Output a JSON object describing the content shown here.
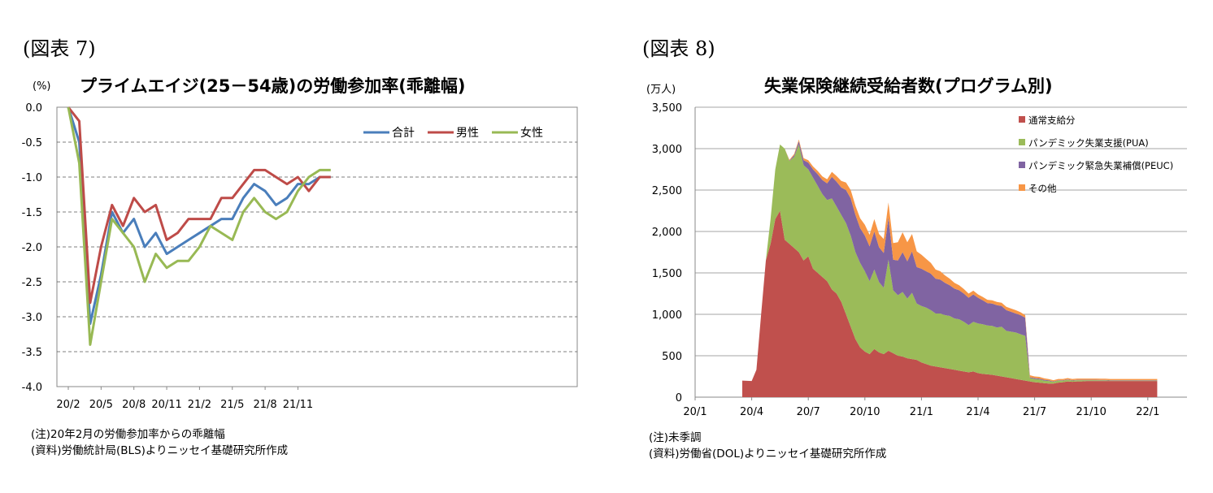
{
  "fig7": {
    "label": "(図表 7)",
    "title": "プライムエイジ(25－54歳)の労働参加率(乖離幅)",
    "unit": "(%)",
    "note1": "(注)20年2月の労働参加率からの乖離幅",
    "note2": "(資料)労働統計局(BLS)よりニッセイ基礎研究所作成",
    "chart_data": {
      "type": "line",
      "title": "プライムエイジ(25－54歳)の労働参加率(乖離幅)",
      "ylabel": "(%)",
      "ylim": [
        -4.0,
        0.0
      ],
      "yticks": [
        "0.0",
        "-0.5",
        "-1.0",
        "-1.5",
        "-2.0",
        "-2.5",
        "-3.0",
        "-3.5",
        "-4.0"
      ],
      "xtick_labels": [
        "20/2",
        "20/5",
        "20/8",
        "20/11",
        "21/2",
        "21/5",
        "21/8",
        "21/11"
      ],
      "categories": [
        "20/2",
        "20/3",
        "20/4",
        "20/5",
        "20/6",
        "20/7",
        "20/8",
        "20/9",
        "20/10",
        "20/11",
        "20/12",
        "21/1",
        "21/2",
        "21/3",
        "21/4",
        "21/5",
        "21/6",
        "21/7",
        "21/8",
        "21/9",
        "21/10",
        "21/11",
        "21/12",
        "22/1",
        "22/2"
      ],
      "legend_position": "top-right",
      "grid": true,
      "series": [
        {
          "name": "合計",
          "color": "#4a7ebb",
          "values": [
            0.0,
            -0.5,
            -3.1,
            -2.4,
            -1.5,
            -1.8,
            -1.6,
            -2.0,
            -1.8,
            -2.1,
            -2.0,
            -1.9,
            -1.8,
            -1.7,
            -1.6,
            -1.6,
            -1.3,
            -1.1,
            -1.2,
            -1.4,
            -1.3,
            -1.1,
            -1.1,
            -1.0,
            -1.0
          ]
        },
        {
          "name": "男性",
          "color": "#be4b48",
          "values": [
            0.0,
            -0.2,
            -2.8,
            -2.0,
            -1.4,
            -1.7,
            -1.3,
            -1.5,
            -1.4,
            -1.9,
            -1.8,
            -1.6,
            -1.6,
            -1.6,
            -1.3,
            -1.3,
            -1.1,
            -0.9,
            -0.9,
            -1.0,
            -1.1,
            -1.0,
            -1.2,
            -1.0,
            -1.0
          ]
        },
        {
          "name": "女性",
          "color": "#98b954",
          "values": [
            0.0,
            -0.8,
            -3.4,
            -2.5,
            -1.6,
            -1.8,
            -2.0,
            -2.5,
            -2.1,
            -2.3,
            -2.2,
            -2.2,
            -2.0,
            -1.7,
            -1.8,
            -1.9,
            -1.5,
            -1.3,
            -1.5,
            -1.6,
            -1.5,
            -1.2,
            -1.0,
            -0.9,
            -0.9
          ]
        }
      ]
    }
  },
  "fig8": {
    "label": "(図表 8)",
    "title": "失業保険継続受給者数(プログラム別)",
    "unit": "(万人)",
    "note1": "(注)未季調",
    "note2": "(資料)労働省(DOL)よりニッセイ基礎研究所作成",
    "chart_data": {
      "type": "area",
      "stacked": true,
      "title": "失業保険継続受給者数(プログラム別)",
      "ylabel": "(万人)",
      "ylim": [
        0,
        3500
      ],
      "yticks": [
        "0",
        "500",
        "1,000",
        "1,500",
        "2,000",
        "2,500",
        "3,000",
        "3,500"
      ],
      "xtick_labels": [
        "20/1",
        "20/4",
        "20/7",
        "20/10",
        "21/1",
        "21/4",
        "21/7",
        "21/10",
        "22/1"
      ],
      "legend_position": "top-right",
      "grid": true,
      "x": [
        2.5,
        3.0,
        3.25,
        3.5,
        3.75,
        4.0,
        4.25,
        4.5,
        4.75,
        5.0,
        5.25,
        5.5,
        5.75,
        6.0,
        6.25,
        6.5,
        6.75,
        7.0,
        7.25,
        7.5,
        7.75,
        8.0,
        8.25,
        8.5,
        8.75,
        9.0,
        9.25,
        9.5,
        9.75,
        10.0,
        10.25,
        10.5,
        10.75,
        11.0,
        11.25,
        11.5,
        11.75,
        12.0,
        12.25,
        12.5,
        12.75,
        13.0,
        13.25,
        13.5,
        13.75,
        14.0,
        14.25,
        14.5,
        14.75,
        15.0,
        15.25,
        15.5,
        15.75,
        16.0,
        16.25,
        16.5,
        16.75,
        17.0,
        17.25,
        17.5,
        17.75,
        18.0,
        18.25,
        18.5,
        18.75,
        19.0,
        19.25,
        19.5,
        19.75,
        20.0,
        20.25,
        20.5,
        20.75,
        21.0,
        21.25,
        21.5,
        21.75,
        22.0,
        22.25,
        22.5,
        22.75,
        23.0,
        23.25,
        23.5,
        23.75,
        24.0,
        24.25,
        24.5
      ],
      "series": [
        {
          "name": "通常支給分",
          "color": "#c0504d",
          "values": [
            200,
            195,
            330,
            1000,
            1650,
            1850,
            2150,
            2250,
            1900,
            1850,
            1800,
            1750,
            1650,
            1700,
            1550,
            1500,
            1450,
            1400,
            1300,
            1250,
            1150,
            1000,
            850,
            700,
            600,
            550,
            520,
            580,
            540,
            520,
            560,
            530,
            500,
            490,
            470,
            460,
            450,
            420,
            400,
            380,
            370,
            360,
            350,
            340,
            330,
            320,
            310,
            300,
            310,
            290,
            280,
            275,
            270,
            260,
            250,
            240,
            230,
            220,
            210,
            200,
            190,
            180,
            175,
            170,
            165,
            165,
            175,
            180,
            190,
            185,
            190,
            190,
            195,
            195,
            195,
            195,
            195,
            195,
            195,
            195,
            195,
            195,
            195,
            195,
            195,
            195,
            195,
            195
          ]
        },
        {
          "name": "パンデミック失業支援(PUA)",
          "color": "#9bbb59",
          "values": [
            0,
            0,
            0,
            0,
            0,
            300,
            600,
            800,
            1100,
            1000,
            1100,
            1300,
            1150,
            1050,
            1100,
            1050,
            1000,
            980,
            1100,
            1050,
            1050,
            1100,
            1100,
            1050,
            1020,
            970,
            880,
            960,
            850,
            800,
            1100,
            760,
            730,
            780,
            720,
            800,
            680,
            680,
            680,
            670,
            640,
            650,
            640,
            640,
            620,
            620,
            600,
            570,
            600,
            600,
            600,
            590,
            590,
            580,
            600,
            560,
            560,
            560,
            550,
            540,
            40,
            40,
            40,
            30,
            30,
            20,
            25,
            20,
            20,
            15,
            15,
            15,
            10,
            10,
            10,
            8,
            8,
            5,
            5,
            5,
            5,
            5,
            5,
            5,
            5,
            5,
            5,
            5
          ]
        },
        {
          "name": "パンデミック緊急失業補償(PEUC)",
          "color": "#8064a2",
          "values": [
            0,
            0,
            0,
            0,
            0,
            0,
            0,
            0,
            0,
            5,
            20,
            40,
            60,
            80,
            100,
            140,
            170,
            200,
            260,
            300,
            330,
            400,
            450,
            450,
            420,
            430,
            420,
            460,
            420,
            420,
            510,
            370,
            420,
            480,
            450,
            500,
            440,
            450,
            440,
            440,
            420,
            410,
            390,
            370,
            360,
            350,
            340,
            330,
            330,
            310,
            290,
            270,
            270,
            270,
            250,
            250,
            240,
            230,
            230,
            220,
            10,
            10,
            10,
            10,
            8,
            5,
            5,
            5,
            5,
            5,
            5,
            5,
            5,
            5,
            5,
            5,
            5,
            5,
            5,
            5,
            5,
            5,
            5,
            5,
            5,
            5,
            5,
            5
          ]
        },
        {
          "name": "その他",
          "color": "#f79646",
          "values": [
            0,
            0,
            0,
            0,
            0,
            0,
            0,
            0,
            0,
            10,
            15,
            20,
            25,
            30,
            35,
            40,
            45,
            50,
            60,
            70,
            80,
            90,
            100,
            110,
            120,
            130,
            140,
            150,
            160,
            170,
            180,
            200,
            220,
            240,
            230,
            210,
            190,
            170,
            150,
            130,
            110,
            100,
            90,
            80,
            70,
            60,
            55,
            50,
            45,
            40,
            40,
            40,
            40,
            40,
            40,
            40,
            40,
            40,
            35,
            30,
            25,
            20,
            20,
            18,
            15,
            15,
            15,
            15,
            15,
            15,
            15,
            15,
            15,
            15,
            15,
            15,
            15,
            15,
            15,
            15,
            15,
            15,
            15,
            15,
            15,
            15,
            15,
            15
          ]
        }
      ]
    }
  }
}
